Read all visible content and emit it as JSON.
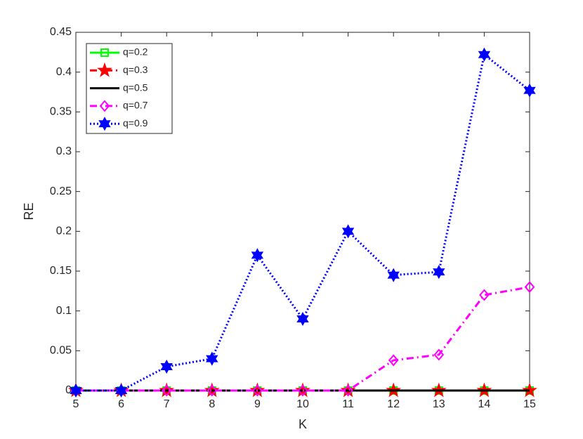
{
  "chart_data": {
    "type": "line",
    "x_label": "K",
    "y_label": "RE",
    "x": [
      5,
      6,
      7,
      8,
      9,
      10,
      11,
      12,
      13,
      14,
      15
    ],
    "xlim": [
      5,
      15
    ],
    "xticks": [
      5,
      6,
      7,
      8,
      9,
      10,
      11,
      12,
      13,
      14,
      15
    ],
    "ylim": [
      0,
      0.45
    ],
    "yticks": [
      0,
      0.05,
      0.1,
      0.15,
      0.2,
      0.25,
      0.3,
      0.35,
      0.4,
      0.45
    ],
    "legend": "top-left",
    "series": [
      {
        "name": "q=0.2",
        "color": "#00ff00",
        "marker": "square",
        "dash": "solid",
        "values": [
          0,
          0,
          0,
          0,
          0,
          0,
          0,
          0,
          0,
          0,
          0
        ]
      },
      {
        "name": "q=0.3",
        "color": "#ff0000",
        "marker": "pentagram",
        "dash": "dashdot",
        "values": [
          0,
          0,
          0,
          0,
          0,
          0,
          0,
          0,
          0,
          0,
          0
        ]
      },
      {
        "name": "q=0.5",
        "color": "#000000",
        "marker": "none",
        "dash": "solid",
        "values": [
          0,
          0,
          0,
          0,
          0,
          0,
          0,
          0,
          0,
          0,
          0
        ]
      },
      {
        "name": "q=0.7",
        "color": "#ff00ff",
        "marker": "diamond",
        "dash": "dashdot",
        "values": [
          0,
          0,
          0,
          0,
          0,
          0,
          0,
          0.038,
          0.045,
          0.12,
          0.13
        ]
      },
      {
        "name": "q=0.9",
        "color": "#0000ff",
        "marker": "hexagram",
        "dash": "dotted",
        "values": [
          0,
          0,
          0.03,
          0.04,
          0.17,
          0.09,
          0.2,
          0.145,
          0.149,
          0.422,
          0.377
        ]
      }
    ]
  }
}
